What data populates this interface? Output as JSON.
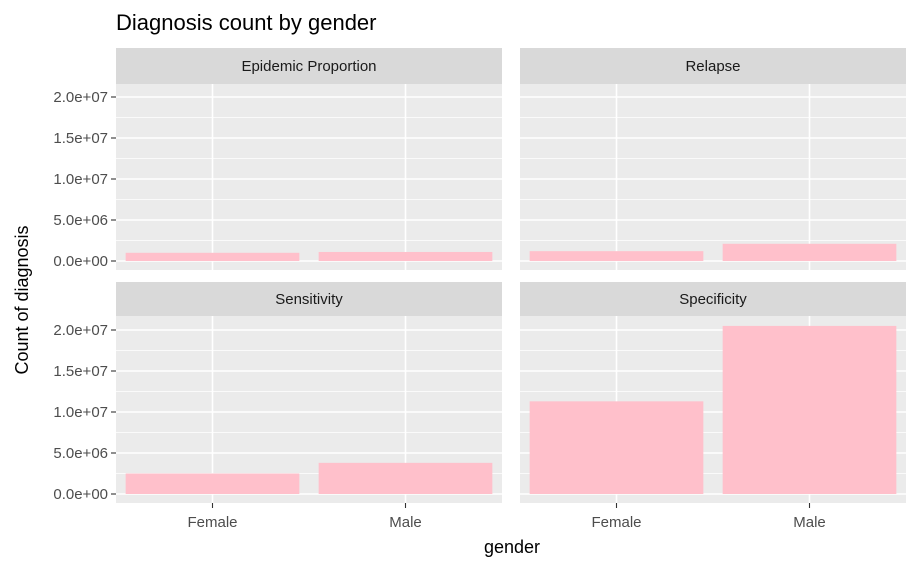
{
  "chart_data": {
    "type": "bar",
    "title": "Diagnosis count by gender",
    "xlabel": "gender",
    "ylabel": "Count of diagnosis",
    "categories": [
      "Female",
      "Male"
    ],
    "ylim": [
      0,
      21000000
    ],
    "yticks": [
      0,
      5000000,
      10000000,
      15000000,
      20000000
    ],
    "ytick_labels": [
      "0.0e+00",
      "5.0e+06",
      "1.0e+07",
      "1.5e+07",
      "2.0e+07"
    ],
    "bar_color": "#FFC0CB",
    "panel_background": "#EBEBEB",
    "strip_background": "#D9D9D9",
    "grid": true,
    "facets": [
      {
        "label": "Epidemic Proportion",
        "values": [
          1000000,
          1100000
        ]
      },
      {
        "label": "Relapse",
        "values": [
          1200000,
          2100000
        ]
      },
      {
        "label": "Sensitivity",
        "values": [
          2500000,
          3800000
        ]
      },
      {
        "label": "Specificity",
        "values": [
          11300000,
          20500000
        ]
      }
    ]
  }
}
